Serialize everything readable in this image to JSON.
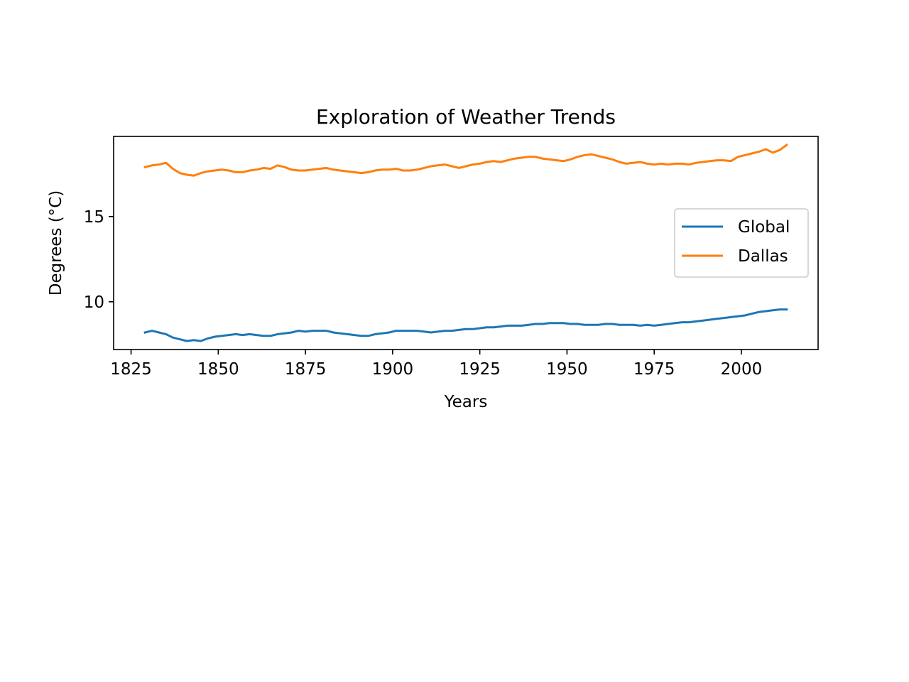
{
  "chart_data": {
    "type": "line",
    "title": "Exploration of Weather Trends",
    "xlabel": "Years",
    "ylabel": "Degrees (°C)",
    "xlim": [
      1820,
      2022
    ],
    "ylim": [
      7.2,
      19.7
    ],
    "xticks": [
      1825,
      1850,
      1875,
      1900,
      1925,
      1950,
      1975,
      2000
    ],
    "yticks": [
      10,
      15
    ],
    "grid": false,
    "legend_position": "center-right",
    "series": [
      {
        "name": "Global",
        "color": "#1f77b4",
        "x": [
          1829,
          1831,
          1833,
          1835,
          1837,
          1839,
          1841,
          1843,
          1845,
          1847,
          1849,
          1851,
          1853,
          1855,
          1857,
          1859,
          1861,
          1863,
          1865,
          1867,
          1869,
          1871,
          1873,
          1875,
          1877,
          1879,
          1881,
          1883,
          1885,
          1887,
          1889,
          1891,
          1893,
          1895,
          1897,
          1899,
          1901,
          1903,
          1905,
          1907,
          1909,
          1911,
          1913,
          1915,
          1917,
          1919,
          1921,
          1923,
          1925,
          1927,
          1929,
          1931,
          1933,
          1935,
          1937,
          1939,
          1941,
          1943,
          1945,
          1947,
          1949,
          1951,
          1953,
          1955,
          1957,
          1959,
          1961,
          1963,
          1965,
          1967,
          1969,
          1971,
          1973,
          1975,
          1977,
          1979,
          1981,
          1983,
          1985,
          1987,
          1989,
          1991,
          1993,
          1995,
          1997,
          1999,
          2001,
          2003,
          2005,
          2007,
          2009,
          2011,
          2013
        ],
        "values": [
          8.2,
          8.3,
          8.2,
          8.1,
          7.9,
          7.8,
          7.7,
          7.75,
          7.7,
          7.85,
          7.95,
          8.0,
          8.05,
          8.1,
          8.05,
          8.1,
          8.05,
          8.0,
          8.0,
          8.1,
          8.15,
          8.2,
          8.3,
          8.25,
          8.3,
          8.3,
          8.3,
          8.2,
          8.15,
          8.1,
          8.05,
          8.0,
          8.0,
          8.1,
          8.15,
          8.2,
          8.3,
          8.3,
          8.3,
          8.3,
          8.25,
          8.2,
          8.25,
          8.3,
          8.3,
          8.35,
          8.4,
          8.4,
          8.45,
          8.5,
          8.5,
          8.55,
          8.6,
          8.6,
          8.6,
          8.65,
          8.7,
          8.7,
          8.75,
          8.75,
          8.75,
          8.7,
          8.7,
          8.65,
          8.65,
          8.65,
          8.7,
          8.7,
          8.65,
          8.65,
          8.65,
          8.6,
          8.65,
          8.6,
          8.65,
          8.7,
          8.75,
          8.8,
          8.8,
          8.85,
          8.9,
          8.95,
          9.0,
          9.05,
          9.1,
          9.15,
          9.2,
          9.3,
          9.4,
          9.45,
          9.5,
          9.55,
          9.55
        ]
      },
      {
        "name": "Dallas",
        "color": "#ff7f0e",
        "x": [
          1829,
          1831,
          1833,
          1835,
          1837,
          1839,
          1841,
          1843,
          1845,
          1847,
          1849,
          1851,
          1853,
          1855,
          1857,
          1859,
          1861,
          1863,
          1865,
          1867,
          1869,
          1871,
          1873,
          1875,
          1877,
          1879,
          1881,
          1883,
          1885,
          1887,
          1889,
          1891,
          1893,
          1895,
          1897,
          1899,
          1901,
          1903,
          1905,
          1907,
          1909,
          1911,
          1913,
          1915,
          1917,
          1919,
          1921,
          1923,
          1925,
          1927,
          1929,
          1931,
          1933,
          1935,
          1937,
          1939,
          1941,
          1943,
          1945,
          1947,
          1949,
          1951,
          1953,
          1955,
          1957,
          1959,
          1961,
          1963,
          1965,
          1967,
          1969,
          1971,
          1973,
          1975,
          1977,
          1979,
          1981,
          1983,
          1985,
          1987,
          1989,
          1991,
          1993,
          1995,
          1997,
          1999,
          2001,
          2003,
          2005,
          2007,
          2009,
          2011,
          2013
        ],
        "values": [
          17.9,
          18.0,
          18.05,
          18.15,
          17.8,
          17.55,
          17.45,
          17.4,
          17.55,
          17.65,
          17.7,
          17.75,
          17.7,
          17.6,
          17.6,
          17.7,
          17.75,
          17.85,
          17.8,
          18.0,
          17.9,
          17.75,
          17.7,
          17.7,
          17.75,
          17.8,
          17.85,
          17.75,
          17.7,
          17.65,
          17.6,
          17.55,
          17.6,
          17.7,
          17.75,
          17.75,
          17.8,
          17.7,
          17.7,
          17.75,
          17.85,
          17.95,
          18.0,
          18.05,
          17.95,
          17.85,
          17.95,
          18.05,
          18.1,
          18.2,
          18.25,
          18.2,
          18.3,
          18.4,
          18.45,
          18.5,
          18.5,
          18.4,
          18.35,
          18.3,
          18.25,
          18.35,
          18.5,
          18.6,
          18.65,
          18.55,
          18.45,
          18.35,
          18.2,
          18.1,
          18.15,
          18.2,
          18.1,
          18.05,
          18.1,
          18.05,
          18.1,
          18.1,
          18.05,
          18.15,
          18.2,
          18.25,
          18.3,
          18.3,
          18.25,
          18.5,
          18.6,
          18.7,
          18.8,
          18.95,
          18.75,
          18.9,
          19.2
        ]
      }
    ]
  }
}
